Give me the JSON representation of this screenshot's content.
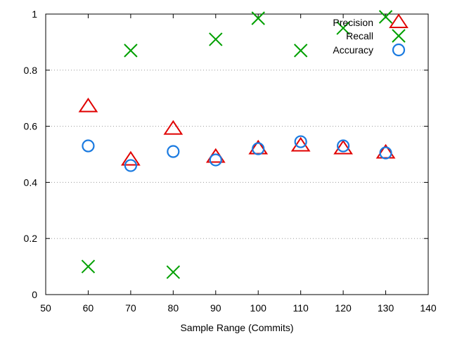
{
  "chart_data": {
    "type": "scatter",
    "title": "",
    "xlabel": "Sample Range (Commits)",
    "ylabel": "",
    "xlim": [
      50,
      140
    ],
    "ylim": [
      0,
      1
    ],
    "xticks": [
      50,
      60,
      70,
      80,
      90,
      100,
      110,
      120,
      130,
      140
    ],
    "yticks": [
      0,
      0.2,
      0.4,
      0.6,
      0.8,
      1
    ],
    "ytick_labels": [
      "0",
      "0.2",
      "0.4",
      "0.6",
      "0.8",
      "1"
    ],
    "grid": "horizontal dotted",
    "legend_placement": "top-right",
    "x": [
      60,
      70,
      80,
      90,
      100,
      110,
      120,
      130
    ],
    "series": [
      {
        "name": "Precision",
        "marker": "triangle",
        "color": "#e00000",
        "values": [
          0.67,
          0.48,
          0.59,
          0.49,
          0.52,
          0.53,
          0.52,
          0.505
        ]
      },
      {
        "name": "Recall",
        "marker": "cross",
        "color": "#00a000",
        "values": [
          0.1,
          0.87,
          0.08,
          0.91,
          0.985,
          0.87,
          0.95,
          0.99
        ]
      },
      {
        "name": "Accuracy",
        "marker": "circle",
        "color": "#1a7ae0",
        "values": [
          0.53,
          0.46,
          0.51,
          0.48,
          0.52,
          0.545,
          0.53,
          0.505
        ]
      }
    ]
  }
}
